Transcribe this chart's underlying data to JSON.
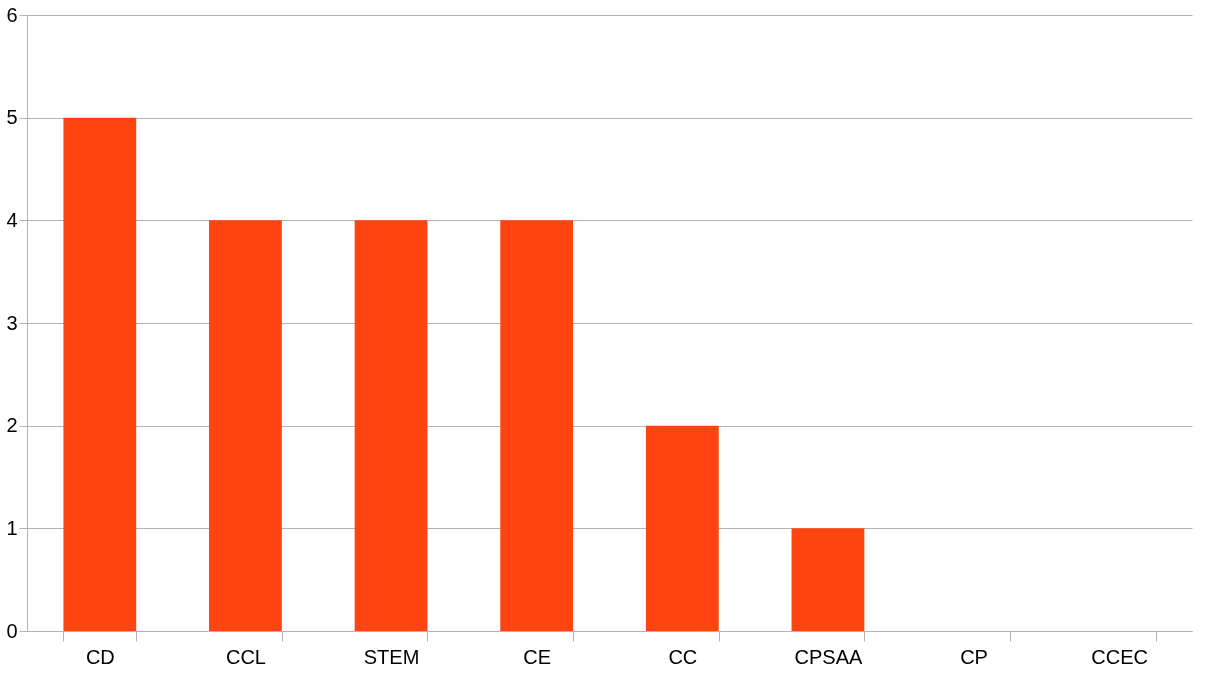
{
  "chart_data": {
    "type": "bar",
    "categories": [
      "CD",
      "CCL",
      "STEM",
      "CE",
      "CC",
      "CPSAA",
      "CP",
      "CCEC"
    ],
    "values": [
      5,
      4,
      4,
      4,
      2,
      1,
      0,
      0
    ],
    "color": "#ff4411",
    "ylim": [
      0,
      6
    ],
    "yticks": [
      0,
      1,
      2,
      3,
      4,
      5,
      6
    ],
    "grid": "y"
  }
}
